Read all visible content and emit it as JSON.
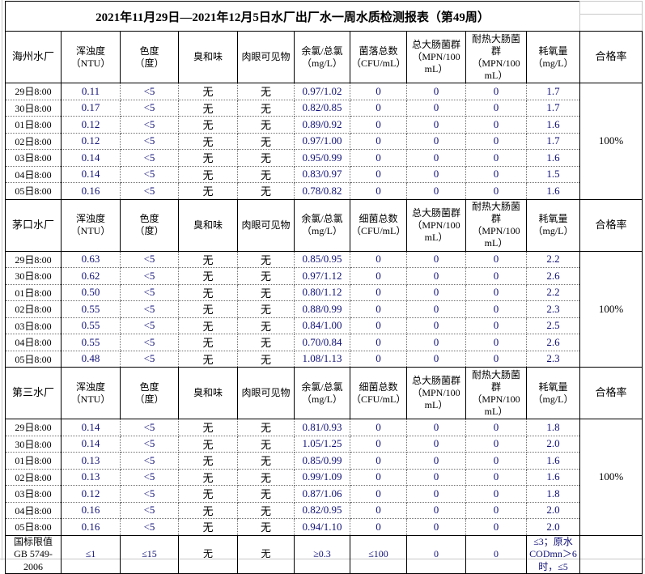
{
  "title": "2021年11月29日—2021年12月5日水厂出厂水一周水质检测报表（第49周）",
  "labels": {
    "pass_rate": "合格率"
  },
  "colors": {
    "numeric_value_text": "#101078",
    "text": "#000000",
    "table_border": "#000000",
    "outside_gridline": "#c9c9c9",
    "background": "#ffffff"
  },
  "sections": [
    {
      "plant": "海州水厂",
      "columns": [
        "浑浊度\n（NTU）",
        "色度\n（度）",
        "臭和味",
        "肉眼可见物",
        "余氯/总氯\n（mg/L）",
        "菌落总数\n（CFU/mL）",
        "总大肠菌群\n（MPN/100\nmL）",
        "耐热大肠菌\n群\n（MPN/100\nmL）",
        "耗氧量\n（mg/L）"
      ],
      "pass_rate": "100%",
      "rows": [
        {
          "time": "29日8:00",
          "values": [
            "0.11",
            "<5",
            "无",
            "无",
            "0.97/1.02",
            "0",
            "0",
            "0",
            "1.7"
          ]
        },
        {
          "time": "30日8:00",
          "values": [
            "0.17",
            "<5",
            "无",
            "无",
            "0.82/0.85",
            "0",
            "0",
            "0",
            "1.7"
          ]
        },
        {
          "time": "01日8:00",
          "values": [
            "0.12",
            "<5",
            "无",
            "无",
            "0.89/0.92",
            "0",
            "0",
            "0",
            "1.6"
          ]
        },
        {
          "time": "02日8:00",
          "values": [
            "0.12",
            "<5",
            "无",
            "无",
            "0.97/1.00",
            "0",
            "0",
            "0",
            "1.7"
          ]
        },
        {
          "time": "03日8:00",
          "values": [
            "0.14",
            "<5",
            "无",
            "无",
            "0.95/0.99",
            "0",
            "0",
            "0",
            "1.6"
          ]
        },
        {
          "time": "04日8:00",
          "values": [
            "0.14",
            "<5",
            "无",
            "无",
            "0.83/0.97",
            "0",
            "0",
            "0",
            "1.5"
          ]
        },
        {
          "time": "05日8:00",
          "values": [
            "0.16",
            "<5",
            "无",
            "无",
            "0.78/0.82",
            "0",
            "0",
            "0",
            "1.6"
          ]
        }
      ]
    },
    {
      "plant": "茅口水厂",
      "columns": [
        "浑浊度\n（NTU）",
        "色度\n（度）",
        "臭和味",
        "肉眼可见物",
        "余氯/总氯\n（mg/L）",
        "细菌总数\n（CFU/mL）",
        "总大肠菌群\n（MPN/100\nmL）",
        "耐热大肠菌\n群\n（MPN/100\nmL）",
        "耗氧量\n（mg/L）"
      ],
      "pass_rate": "100%",
      "rows": [
        {
          "time": "29日8:00",
          "values": [
            "0.63",
            "<5",
            "无",
            "无",
            "0.85/0.95",
            "0",
            "0",
            "0",
            "2.2"
          ]
        },
        {
          "time": "30日8:00",
          "values": [
            "0.62",
            "<5",
            "无",
            "无",
            "0.97/1.12",
            "0",
            "0",
            "0",
            "2.6"
          ]
        },
        {
          "time": "01日8:00",
          "values": [
            "0.50",
            "<5",
            "无",
            "无",
            "0.80/1.12",
            "0",
            "0",
            "0",
            "2.2"
          ]
        },
        {
          "time": "02日8:00",
          "values": [
            "0.55",
            "<5",
            "无",
            "无",
            "0.88/0.99",
            "0",
            "0",
            "0",
            "2.3"
          ]
        },
        {
          "time": "03日8:00",
          "values": [
            "0.55",
            "<5",
            "无",
            "无",
            "0.84/1.00",
            "0",
            "0",
            "0",
            "2.5"
          ]
        },
        {
          "time": "04日8:00",
          "values": [
            "0.55",
            "<5",
            "无",
            "无",
            "0.70/0.84",
            "0",
            "0",
            "0",
            "2.6"
          ]
        },
        {
          "time": "05日8:00",
          "values": [
            "0.48",
            "<5",
            "无",
            "无",
            "1.08/1.13",
            "0",
            "0",
            "0",
            "2.3"
          ]
        }
      ]
    },
    {
      "plant": "第三水厂",
      "columns": [
        "浑浊度\n（NTU）",
        "色度\n（度）",
        "臭和味",
        "肉眼可见物",
        "余氯/总氯\n（mg/L）",
        "细菌总数\n（CFU/mL）",
        "总大肠菌群\n（MPN/100\nmL）",
        "耐热大肠菌\n群\n（MPN/100\nmL）",
        "耗氧量\n（mg/L）"
      ],
      "pass_rate": "100%",
      "rows": [
        {
          "time": "29日8:00",
          "values": [
            "0.14",
            "<5",
            "无",
            "无",
            "0.81/0.93",
            "0",
            "0",
            "0",
            "1.8"
          ]
        },
        {
          "time": "30日8:00",
          "values": [
            "0.14",
            "<5",
            "无",
            "无",
            "1.05/1.25",
            "0",
            "0",
            "0",
            "2.0"
          ]
        },
        {
          "time": "01日8:00",
          "values": [
            "0.13",
            "<5",
            "无",
            "无",
            "0.85/0.99",
            "0",
            "0",
            "0",
            "1.6"
          ]
        },
        {
          "time": "02日8:00",
          "values": [
            "0.13",
            "<5",
            "无",
            "无",
            "0.99/1.09",
            "0",
            "0",
            "0",
            "1.6"
          ]
        },
        {
          "time": "03日8:00",
          "values": [
            "0.12",
            "<5",
            "无",
            "无",
            "0.87/1.06",
            "0",
            "0",
            "0",
            "1.8"
          ]
        },
        {
          "time": "04日8:00",
          "values": [
            "0.16",
            "<5",
            "无",
            "无",
            "0.82/0.95",
            "0",
            "0",
            "0",
            "2.0"
          ]
        },
        {
          "time": "05日8:00",
          "values": [
            "0.16",
            "<5",
            "无",
            "无",
            "0.94/1.10",
            "0",
            "0",
            "0",
            "2.0"
          ]
        }
      ]
    }
  ],
  "limits": {
    "label": "国标限值\nGB 5749-\n2006",
    "values": [
      "≤1",
      "≤15",
      "无",
      "无",
      "≥0.3",
      "≤100",
      "0",
      "0",
      "≤3；原水\nCODmn＞6\n时，≤5"
    ],
    "pass_rate": ""
  }
}
